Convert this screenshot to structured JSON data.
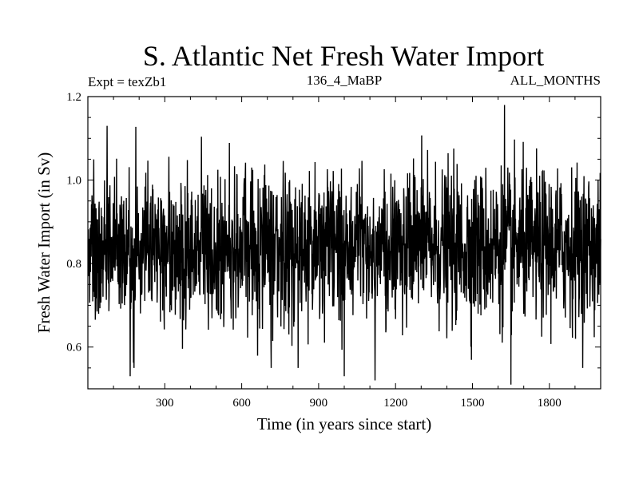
{
  "chart_data": {
    "type": "line",
    "title": "S. Atlantic Net Fresh Water Import",
    "subtitle_left": "Expt = texZb1",
    "subtitle_center": "136_4_MaBP",
    "subtitle_right": "ALL_MONTHS",
    "xlabel": "Time (in years since start)",
    "ylabel": "Fresh Water Import (in Sv)",
    "xlim": [
      0,
      2000
    ],
    "ylim": [
      0.5,
      1.2
    ],
    "x_ticks": [
      300,
      600,
      900,
      1200,
      1500,
      1800
    ],
    "x_tick_labels": [
      "300",
      "600",
      "900",
      "1200",
      "1500",
      "1800"
    ],
    "y_ticks": [
      0.6,
      0.8,
      1.0,
      1.2
    ],
    "y_tick_labels": [
      "0.6",
      "0.8",
      "1.0",
      "1.2"
    ],
    "grid": false,
    "series": [
      {
        "name": "Net Fresh Water Import",
        "color": "#000000",
        "summary": {
          "n_points": 2000,
          "x_start": 1,
          "x_step": 1,
          "mean": 0.84,
          "std": 0.09,
          "min": 0.51,
          "max": 1.18
        },
        "extremes": [
          {
            "x": 75,
            "y": 1.13
          },
          {
            "x": 165,
            "y": 0.53
          },
          {
            "x": 180,
            "y": 0.55
          },
          {
            "x": 1120,
            "y": 0.52
          },
          {
            "x": 1625,
            "y": 1.18
          },
          {
            "x": 1650,
            "y": 0.51
          },
          {
            "x": 1000,
            "y": 0.53
          }
        ]
      }
    ]
  }
}
